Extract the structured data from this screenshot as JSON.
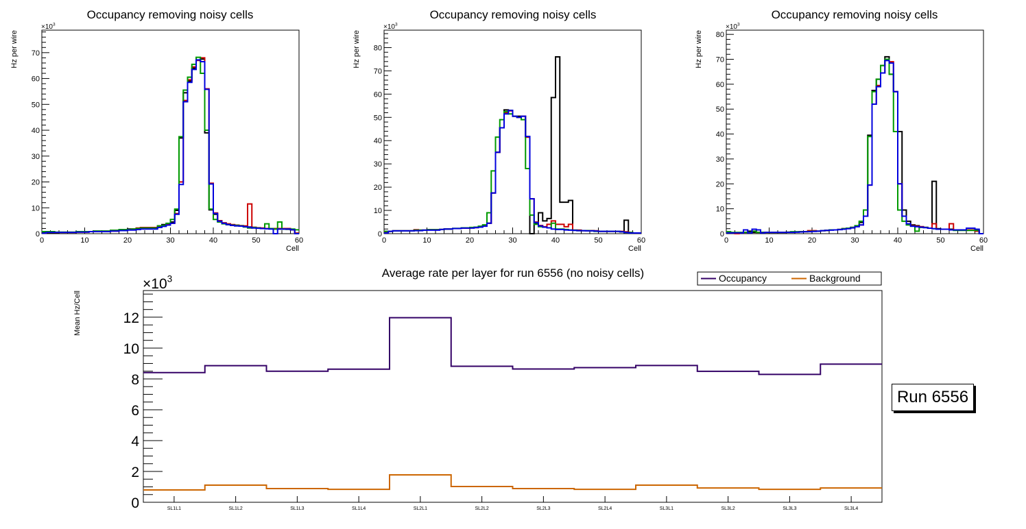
{
  "chart_data": [
    {
      "type": "histogram-step",
      "title": "Occupancy removing noisy cells",
      "xlabel": "Cell",
      "ylabel": "Hz per wire",
      "y_multiplier_label": "×10^3",
      "xlim": [
        0,
        60
      ],
      "ylim": [
        0,
        78.7
      ],
      "x_ticks": [
        0,
        10,
        20,
        30,
        40,
        50,
        60
      ],
      "y_ticks": [
        0,
        10,
        20,
        30,
        40,
        50,
        60,
        70
      ],
      "bin_width": 1,
      "series": [
        {
          "name": "black",
          "color": "#000000",
          "values": [
            0.5,
            0.3,
            0.3,
            0.3,
            0.5,
            0.5,
            0.5,
            0.5,
            0.8,
            0.8,
            0.8,
            0.8,
            1.0,
            1.0,
            1.0,
            1.0,
            1.3,
            1.3,
            1.6,
            1.6,
            1.8,
            1.8,
            2.0,
            2.0,
            2.3,
            2.3,
            2.3,
            3.0,
            3.5,
            3.8,
            4.5,
            9.0,
            37.0,
            54.5,
            59.0,
            64.0,
            67.0,
            67.5,
            39.0,
            9.2,
            7.5,
            5.0,
            4.0,
            3.5,
            3.2,
            3.0,
            3.0,
            2.8,
            2.6,
            2.4,
            2.2,
            2.1,
            2.0,
            1.9,
            1.8,
            1.8,
            1.8,
            1.7,
            1.5,
            0.2
          ]
        },
        {
          "name": "red",
          "color": "#cc0000",
          "values": [
            0.8,
            0.5,
            0.5,
            0.5,
            0.5,
            0.5,
            0.5,
            0.5,
            0.6,
            0.6,
            0.6,
            0.8,
            0.8,
            0.8,
            0.8,
            0.8,
            1.0,
            1.0,
            1.3,
            1.3,
            1.6,
            1.8,
            2.2,
            2.4,
            2.4,
            2.4,
            2.4,
            2.8,
            3.0,
            3.5,
            4.0,
            7.8,
            20.0,
            51.5,
            59.5,
            64.5,
            67.0,
            68.0,
            56.0,
            19.5,
            8.0,
            5.0,
            4.2,
            3.8,
            3.5,
            3.3,
            3.1,
            3.0,
            11.5,
            2.5,
            2.3,
            2.2,
            2.0,
            2.0,
            2.0,
            2.0,
            2.0,
            2.0,
            1.5,
            0.2
          ]
        },
        {
          "name": "green",
          "color": "#009900",
          "values": [
            0.8,
            0.8,
            0.8,
            0.6,
            0.6,
            0.6,
            0.6,
            0.6,
            0.8,
            0.8,
            0.8,
            0.8,
            1.0,
            1.0,
            1.0,
            1.0,
            1.3,
            1.3,
            1.6,
            1.6,
            1.6,
            1.8,
            2.0,
            2.2,
            2.2,
            2.2,
            2.2,
            3.0,
            3.2,
            4.0,
            5.5,
            9.5,
            37.5,
            55.5,
            60.5,
            65.5,
            68.2,
            62.0,
            40.0,
            9.5,
            5.5,
            4.5,
            3.8,
            3.5,
            3.3,
            3.2,
            3.0,
            2.6,
            2.2,
            2.4,
            2.2,
            2.0,
            3.8,
            2.0,
            1.8,
            4.5,
            1.8,
            1.8,
            1.8,
            1.5
          ]
        },
        {
          "name": "blue",
          "color": "#0000dd",
          "values": [
            0.2,
            0.5,
            0.5,
            0.5,
            0.5,
            0.5,
            0.5,
            0.5,
            0.6,
            0.6,
            0.6,
            0.8,
            0.8,
            0.8,
            0.8,
            0.8,
            1.0,
            1.0,
            1.2,
            1.2,
            1.4,
            1.4,
            1.6,
            1.8,
            1.8,
            1.8,
            1.8,
            2.4,
            2.8,
            3.3,
            4.0,
            7.5,
            19.0,
            51.0,
            58.5,
            63.5,
            67.2,
            66.5,
            55.8,
            19.2,
            7.8,
            4.8,
            4.0,
            3.5,
            3.2,
            3.0,
            2.9,
            2.7,
            2.5,
            2.2,
            2.1,
            2.0,
            1.9,
            1.8,
            0.0,
            1.8,
            1.8,
            1.8,
            1.5,
            0.0
          ]
        }
      ]
    },
    {
      "type": "histogram-step",
      "title": "Occupancy removing noisy cells",
      "xlabel": "Cell",
      "ylabel": "Hz per wire",
      "y_multiplier_label": "×10^3",
      "xlim": [
        0,
        60
      ],
      "ylim": [
        0,
        87.5
      ],
      "x_ticks": [
        0,
        10,
        20,
        30,
        40,
        50,
        60
      ],
      "y_ticks": [
        0,
        10,
        20,
        30,
        40,
        50,
        60,
        70,
        80
      ],
      "bin_width": 1,
      "series": [
        {
          "name": "black",
          "color": "#000000",
          "values": [
            1.0,
            1.0,
            1.2,
            1.2,
            1.2,
            1.2,
            1.2,
            1.5,
            1.5,
            1.5,
            1.7,
            1.7,
            1.7,
            1.8,
            2.0,
            2.0,
            2.2,
            2.2,
            2.4,
            2.4,
            2.6,
            2.6,
            3.0,
            3.5,
            4.5,
            17.5,
            35.0,
            45.5,
            53.2,
            53.0,
            50.5,
            50.5,
            50.5,
            41.5,
            0.0,
            4.5,
            9.0,
            5.5,
            6.5,
            58.5,
            76.0,
            13.5,
            13.5,
            14.3,
            1.5,
            1.5,
            1.3,
            1.3,
            1.3,
            1.2,
            1.0,
            1.0,
            1.0,
            1.0,
            1.0,
            0.8,
            5.8,
            0.5,
            0.3,
            0.3
          ]
        },
        {
          "name": "red",
          "color": "#cc0000",
          "values": [
            0.8,
            1.0,
            1.2,
            1.2,
            1.2,
            1.2,
            1.2,
            1.7,
            1.5,
            1.5,
            1.7,
            1.7,
            1.7,
            1.8,
            2.0,
            2.0,
            2.2,
            2.2,
            2.4,
            2.4,
            2.6,
            2.6,
            3.0,
            3.5,
            4.5,
            17.5,
            35.0,
            45.5,
            52.0,
            52.8,
            50.5,
            50.0,
            50.5,
            41.5,
            15.0,
            5.0,
            3.5,
            3.0,
            4.0,
            5.5,
            4.0,
            4.0,
            3.0,
            4.0,
            1.5,
            1.5,
            1.3,
            1.3,
            1.3,
            1.2,
            1.0,
            1.0,
            1.0,
            1.0,
            1.0,
            1.0,
            0.8,
            0.5,
            0.3,
            0.3
          ]
        },
        {
          "name": "green",
          "color": "#009900",
          "values": [
            1.0,
            1.0,
            1.2,
            1.2,
            1.2,
            1.2,
            1.2,
            1.5,
            1.5,
            1.5,
            1.7,
            1.7,
            1.7,
            1.8,
            2.0,
            2.0,
            2.3,
            2.3,
            2.5,
            2.5,
            2.7,
            2.8,
            3.2,
            3.8,
            9.0,
            27.0,
            41.5,
            49.0,
            52.5,
            51.5,
            50.5,
            50.0,
            49.0,
            28.0,
            8.0,
            4.0,
            3.0,
            2.8,
            2.5,
            4.5,
            2.0,
            2.0,
            1.8,
            1.6,
            1.5,
            1.3,
            1.3,
            1.3,
            1.2,
            1.0,
            1.0,
            1.0,
            1.0,
            1.0,
            1.0,
            0.8,
            0.5,
            0.5,
            0.3,
            0.3
          ]
        },
        {
          "name": "blue",
          "color": "#0000dd",
          "values": [
            0.3,
            1.0,
            1.2,
            1.2,
            1.2,
            1.2,
            1.2,
            1.3,
            1.3,
            1.5,
            1.5,
            1.5,
            1.5,
            1.8,
            2.0,
            2.0,
            2.2,
            2.2,
            2.4,
            2.4,
            2.4,
            2.6,
            2.8,
            3.2,
            4.5,
            17.5,
            35.0,
            45.5,
            51.5,
            53.0,
            50.5,
            50.0,
            50.5,
            41.8,
            15.0,
            4.8,
            3.3,
            2.8,
            2.5,
            2.0,
            1.8,
            1.8,
            1.6,
            1.5,
            1.4,
            1.3,
            1.3,
            1.2,
            1.2,
            1.1,
            1.0,
            1.0,
            1.0,
            1.0,
            1.0,
            0.8,
            0.5,
            0.3,
            0.3,
            0.3
          ]
        }
      ]
    },
    {
      "type": "histogram-step",
      "title": "Occupancy removing noisy cells",
      "xlabel": "Cell",
      "ylabel": "Hz per wire",
      "y_multiplier_label": "×10^3",
      "xlim": [
        0,
        60
      ],
      "ylim": [
        0,
        81.7
      ],
      "x_ticks": [
        0,
        10,
        20,
        30,
        40,
        50,
        60
      ],
      "y_ticks": [
        0,
        10,
        20,
        30,
        40,
        50,
        60,
        70,
        80
      ],
      "bin_width": 1,
      "series": [
        {
          "name": "black",
          "color": "#000000",
          "values": [
            0.5,
            0.3,
            0.3,
            0.3,
            0.5,
            1.0,
            0.5,
            0.5,
            0.5,
            0.5,
            0.5,
            0.5,
            0.5,
            0.5,
            0.6,
            0.6,
            0.7,
            0.8,
            0.8,
            0.9,
            1.0,
            1.0,
            1.2,
            1.3,
            1.5,
            1.5,
            1.7,
            2.0,
            2.2,
            2.5,
            3.0,
            4.5,
            9.5,
            39.5,
            57.5,
            62.0,
            67.5,
            71.0,
            64.0,
            57.0,
            41.0,
            9.5,
            5.0,
            3.5,
            3.2,
            2.8,
            2.5,
            2.2,
            21.0,
            2.0,
            1.8,
            1.8,
            1.8,
            1.5,
            1.5,
            1.5,
            1.5,
            1.5,
            1.3,
            0.0
          ]
        },
        {
          "name": "red",
          "color": "#cc0000",
          "values": [
            0.5,
            0.3,
            0.0,
            0.3,
            0.5,
            0.5,
            1.0,
            0.5,
            0.5,
            0.5,
            0.5,
            0.5,
            0.5,
            0.5,
            0.6,
            0.6,
            0.7,
            0.8,
            0.8,
            1.2,
            1.2,
            1.0,
            1.2,
            1.3,
            1.5,
            1.5,
            1.7,
            2.0,
            2.2,
            2.5,
            3.0,
            3.5,
            7.0,
            19.5,
            52.0,
            59.5,
            64.5,
            70.0,
            69.0,
            57.0,
            20.0,
            7.0,
            4.0,
            3.2,
            3.0,
            2.8,
            2.5,
            2.2,
            4.0,
            1.8,
            1.8,
            1.8,
            4.0,
            1.5,
            1.5,
            1.5,
            1.5,
            1.5,
            1.0,
            0.0
          ]
        },
        {
          "name": "green",
          "color": "#009900",
          "values": [
            0.8,
            0.5,
            0.5,
            0.5,
            0.5,
            0.5,
            1.0,
            0.5,
            0.5,
            0.5,
            0.5,
            0.5,
            0.5,
            0.5,
            0.6,
            0.8,
            0.8,
            0.8,
            0.8,
            0.9,
            1.0,
            1.0,
            1.2,
            1.3,
            1.5,
            1.5,
            1.7,
            2.0,
            2.2,
            2.5,
            3.2,
            5.0,
            9.5,
            39.0,
            57.0,
            62.0,
            67.5,
            70.0,
            64.0,
            41.0,
            9.5,
            5.0,
            3.5,
            3.0,
            1.0,
            2.5,
            2.5,
            2.2,
            2.0,
            1.8,
            1.8,
            1.8,
            1.5,
            1.3,
            1.3,
            1.3,
            1.3,
            1.3,
            1.3,
            0.0
          ]
        },
        {
          "name": "blue",
          "color": "#0000dd",
          "values": [
            0.3,
            0.3,
            0.3,
            0.3,
            1.5,
            0.3,
            1.8,
            1.5,
            0.3,
            0.5,
            0.5,
            0.5,
            0.5,
            0.5,
            0.5,
            0.5,
            0.6,
            0.7,
            0.8,
            0.8,
            0.9,
            1.0,
            1.2,
            1.3,
            1.4,
            1.5,
            1.6,
            1.8,
            2.0,
            2.3,
            2.8,
            3.5,
            7.0,
            19.5,
            52.0,
            59.0,
            64.5,
            69.5,
            68.5,
            57.0,
            20.0,
            7.0,
            4.0,
            3.0,
            2.8,
            2.6,
            2.4,
            2.2,
            2.0,
            1.8,
            1.8,
            1.8,
            1.5,
            1.5,
            1.5,
            1.5,
            2.2,
            2.2,
            1.8,
            0.0
          ]
        }
      ]
    },
    {
      "type": "histogram-step",
      "title": "Average rate per layer for run 6556 (no noisy cells)",
      "xlabel": "",
      "ylabel": "Mean Hz/Cell",
      "y_multiplier_label": "×10^3",
      "ylim": [
        0,
        13.73
      ],
      "y_ticks": [
        0,
        2,
        4,
        6,
        8,
        10,
        12
      ],
      "categories": [
        "SL1L1",
        "SL1L2",
        "SL1L3",
        "SL1L4",
        "SL2L1",
        "SL2L2",
        "SL2L3",
        "SL2L4",
        "SL3L1",
        "SL3L2",
        "SL3L3",
        "SL3L4"
      ],
      "legend_position": "top-right",
      "series": [
        {
          "name": "Occupancy",
          "color": "#330066",
          "values": [
            8.41,
            8.86,
            8.5,
            8.63,
            11.97,
            8.82,
            8.64,
            8.73,
            8.87,
            8.49,
            8.29,
            8.96
          ]
        },
        {
          "name": "Background",
          "color": "#cc6600",
          "values": [
            0.8,
            1.11,
            0.89,
            0.84,
            1.78,
            1.02,
            0.89,
            0.84,
            1.11,
            0.93,
            0.84,
            0.93
          ]
        }
      ]
    }
  ],
  "run_label": "Run 6556"
}
